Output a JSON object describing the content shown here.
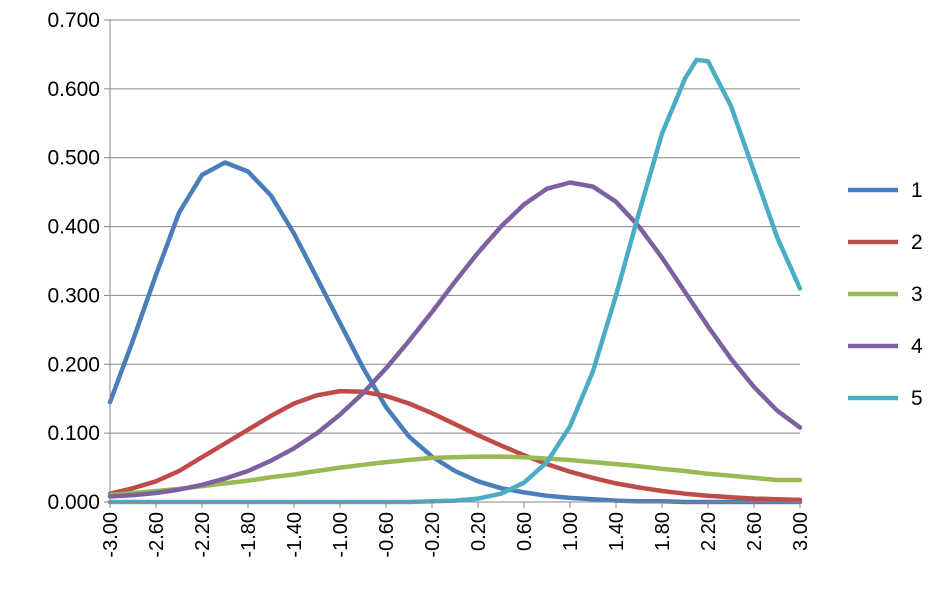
{
  "chart_data": {
    "type": "line",
    "title": "",
    "xlabel": "",
    "ylabel": "",
    "xlim": [
      -3.0,
      3.0
    ],
    "ylim": [
      0,
      0.7
    ],
    "yticks": [
      "0.000",
      "0.100",
      "0.200",
      "0.300",
      "0.400",
      "0.500",
      "0.600",
      "0.700"
    ],
    "xticks": [
      "-3.00",
      "-2.60",
      "-2.20",
      "-1.80",
      "-1.40",
      "-1.00",
      "-0.60",
      "-0.20",
      "0.20",
      "0.60",
      "1.00",
      "1.40",
      "1.80",
      "2.20",
      "2.60",
      "3.00"
    ],
    "grid": "horizontal",
    "legend_position": "right",
    "colors": {
      "axis": "#868686",
      "grid": "#868686"
    },
    "series": [
      {
        "name": "1",
        "color": "#4a7ebb",
        "points": [
          [
            -3.0,
            0.145
          ],
          [
            -2.8,
            0.235
          ],
          [
            -2.6,
            0.33
          ],
          [
            -2.4,
            0.42
          ],
          [
            -2.2,
            0.475
          ],
          [
            -2.0,
            0.493
          ],
          [
            -1.8,
            0.48
          ],
          [
            -1.6,
            0.445
          ],
          [
            -1.4,
            0.39
          ],
          [
            -1.2,
            0.325
          ],
          [
            -1.0,
            0.26
          ],
          [
            -0.8,
            0.195
          ],
          [
            -0.6,
            0.138
          ],
          [
            -0.4,
            0.095
          ],
          [
            -0.2,
            0.066
          ],
          [
            0.0,
            0.045
          ],
          [
            0.2,
            0.03
          ],
          [
            0.4,
            0.02
          ],
          [
            0.6,
            0.014
          ],
          [
            0.8,
            0.009
          ],
          [
            1.0,
            0.006
          ],
          [
            1.2,
            0.004
          ],
          [
            1.4,
            0.002
          ],
          [
            1.6,
            0.001
          ],
          [
            1.8,
            0.001
          ],
          [
            2.0,
            0.0
          ],
          [
            2.2,
            0.0
          ],
          [
            2.4,
            0.0
          ],
          [
            2.6,
            0.0
          ],
          [
            2.8,
            0.0
          ],
          [
            3.0,
            0.0
          ]
        ]
      },
      {
        "name": "2",
        "color": "#be4b48",
        "points": [
          [
            -3.0,
            0.012
          ],
          [
            -2.8,
            0.02
          ],
          [
            -2.6,
            0.03
          ],
          [
            -2.4,
            0.045
          ],
          [
            -2.2,
            0.065
          ],
          [
            -2.0,
            0.085
          ],
          [
            -1.8,
            0.105
          ],
          [
            -1.6,
            0.125
          ],
          [
            -1.4,
            0.143
          ],
          [
            -1.2,
            0.155
          ],
          [
            -1.0,
            0.161
          ],
          [
            -0.8,
            0.16
          ],
          [
            -0.6,
            0.154
          ],
          [
            -0.4,
            0.143
          ],
          [
            -0.2,
            0.129
          ],
          [
            0.0,
            0.113
          ],
          [
            0.2,
            0.097
          ],
          [
            0.4,
            0.082
          ],
          [
            0.6,
            0.068
          ],
          [
            0.8,
            0.055
          ],
          [
            1.0,
            0.044
          ],
          [
            1.2,
            0.035
          ],
          [
            1.4,
            0.027
          ],
          [
            1.6,
            0.021
          ],
          [
            1.8,
            0.016
          ],
          [
            2.0,
            0.012
          ],
          [
            2.2,
            0.009
          ],
          [
            2.4,
            0.007
          ],
          [
            2.6,
            0.005
          ],
          [
            2.8,
            0.004
          ],
          [
            3.0,
            0.003
          ]
        ]
      },
      {
        "name": "3",
        "color": "#98b954",
        "points": [
          [
            -3.0,
            0.01
          ],
          [
            -2.8,
            0.013
          ],
          [
            -2.6,
            0.016
          ],
          [
            -2.4,
            0.019
          ],
          [
            -2.2,
            0.023
          ],
          [
            -2.0,
            0.027
          ],
          [
            -1.8,
            0.031
          ],
          [
            -1.6,
            0.036
          ],
          [
            -1.4,
            0.04
          ],
          [
            -1.2,
            0.045
          ],
          [
            -1.0,
            0.05
          ],
          [
            -0.8,
            0.054
          ],
          [
            -0.6,
            0.058
          ],
          [
            -0.4,
            0.061
          ],
          [
            -0.2,
            0.064
          ],
          [
            0.0,
            0.065
          ],
          [
            0.2,
            0.066
          ],
          [
            0.4,
            0.066
          ],
          [
            0.6,
            0.065
          ],
          [
            0.8,
            0.063
          ],
          [
            1.0,
            0.061
          ],
          [
            1.2,
            0.058
          ],
          [
            1.4,
            0.055
          ],
          [
            1.6,
            0.052
          ],
          [
            1.8,
            0.048
          ],
          [
            2.0,
            0.045
          ],
          [
            2.2,
            0.041
          ],
          [
            2.4,
            0.038
          ],
          [
            2.6,
            0.035
          ],
          [
            2.8,
            0.032
          ],
          [
            3.0,
            0.032
          ]
        ]
      },
      {
        "name": "4",
        "color": "#7d60a0",
        "points": [
          [
            -3.0,
            0.008
          ],
          [
            -2.8,
            0.01
          ],
          [
            -2.6,
            0.013
          ],
          [
            -2.4,
            0.018
          ],
          [
            -2.2,
            0.025
          ],
          [
            -2.0,
            0.034
          ],
          [
            -1.8,
            0.045
          ],
          [
            -1.6,
            0.06
          ],
          [
            -1.4,
            0.078
          ],
          [
            -1.2,
            0.1
          ],
          [
            -1.0,
            0.127
          ],
          [
            -0.8,
            0.158
          ],
          [
            -0.6,
            0.194
          ],
          [
            -0.4,
            0.234
          ],
          [
            -0.2,
            0.276
          ],
          [
            0.0,
            0.32
          ],
          [
            0.2,
            0.362
          ],
          [
            0.4,
            0.4
          ],
          [
            0.6,
            0.432
          ],
          [
            0.8,
            0.455
          ],
          [
            1.0,
            0.464
          ],
          [
            1.2,
            0.458
          ],
          [
            1.4,
            0.436
          ],
          [
            1.6,
            0.4
          ],
          [
            1.8,
            0.355
          ],
          [
            2.0,
            0.305
          ],
          [
            2.2,
            0.255
          ],
          [
            2.4,
            0.208
          ],
          [
            2.6,
            0.167
          ],
          [
            2.8,
            0.133
          ],
          [
            3.0,
            0.108
          ]
        ]
      },
      {
        "name": "5",
        "color": "#4bacc6",
        "points": [
          [
            -3.0,
            0.0
          ],
          [
            -2.8,
            0.0
          ],
          [
            -2.6,
            0.0
          ],
          [
            -2.4,
            0.0
          ],
          [
            -2.2,
            0.0
          ],
          [
            -2.0,
            0.0
          ],
          [
            -1.8,
            0.0
          ],
          [
            -1.6,
            0.0
          ],
          [
            -1.4,
            0.0
          ],
          [
            -1.2,
            0.0
          ],
          [
            -1.0,
            0.0
          ],
          [
            -0.8,
            0.0
          ],
          [
            -0.6,
            0.0
          ],
          [
            -0.4,
            0.0
          ],
          [
            -0.2,
            0.001
          ],
          [
            0.0,
            0.002
          ],
          [
            0.2,
            0.005
          ],
          [
            0.4,
            0.012
          ],
          [
            0.6,
            0.028
          ],
          [
            0.8,
            0.058
          ],
          [
            1.0,
            0.11
          ],
          [
            1.2,
            0.19
          ],
          [
            1.4,
            0.3
          ],
          [
            1.6,
            0.42
          ],
          [
            1.8,
            0.535
          ],
          [
            2.0,
            0.615
          ],
          [
            2.1,
            0.642
          ],
          [
            2.2,
            0.64
          ],
          [
            2.4,
            0.575
          ],
          [
            2.6,
            0.48
          ],
          [
            2.8,
            0.385
          ],
          [
            3.0,
            0.31
          ]
        ]
      }
    ]
  }
}
